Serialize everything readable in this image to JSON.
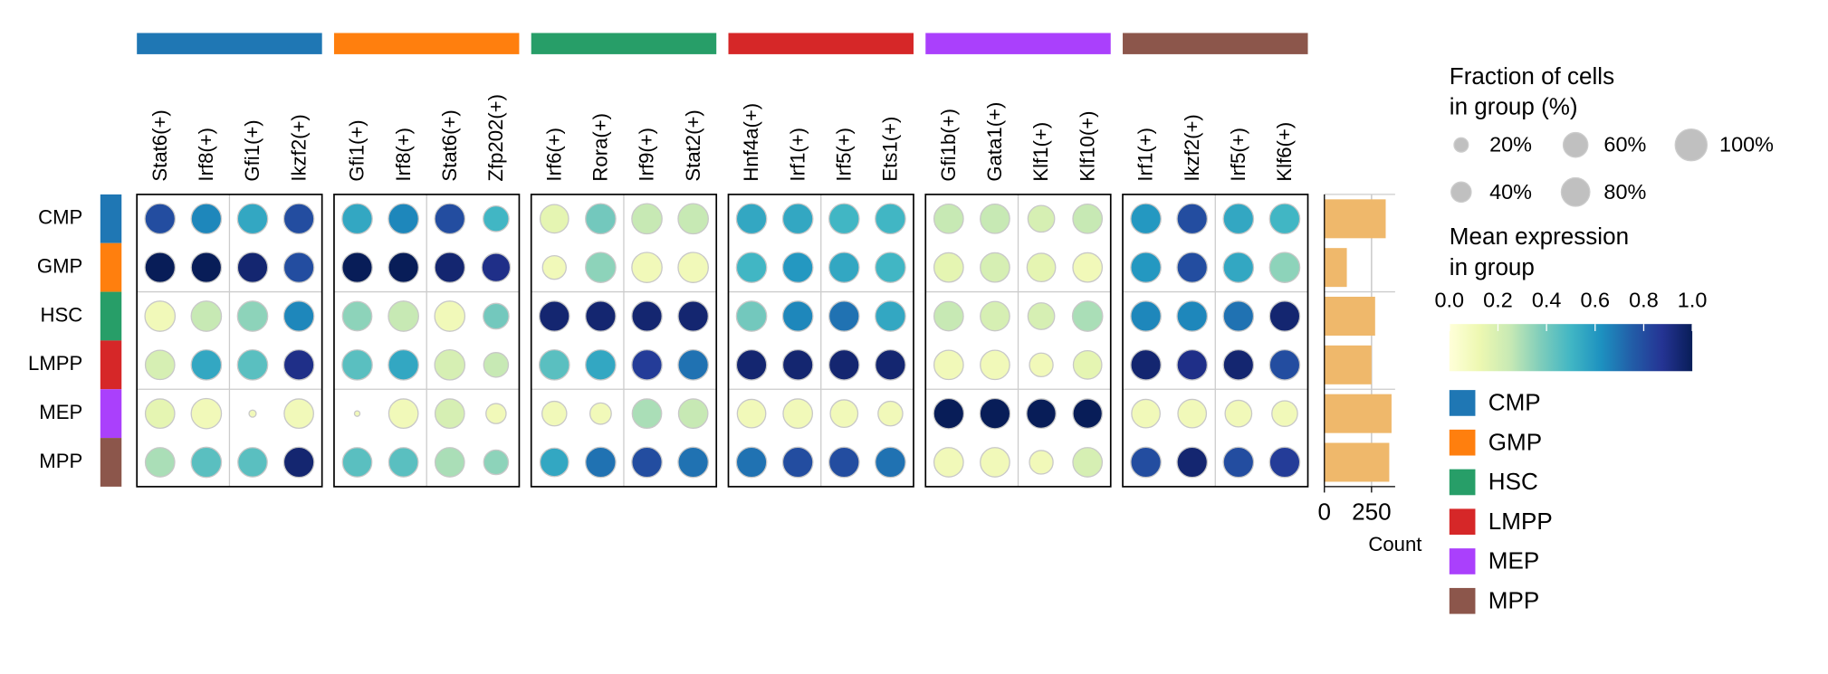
{
  "chart_data": {
    "type": "dotplot",
    "rows": [
      "CMP",
      "GMP",
      "HSC",
      "LMPP",
      "MEP",
      "MPP"
    ],
    "row_colors": [
      "#1f77b4",
      "#ff7f0e",
      "#279e68",
      "#d62728",
      "#aa40fc",
      "#8c564b"
    ],
    "column_groups": [
      {
        "color": "#1f77b4",
        "genes": [
          "Stat6(+)",
          "Irf8(+)",
          "Gfi1(+)",
          "Ikzf2(+)"
        ]
      },
      {
        "color": "#ff7f0e",
        "genes": [
          "Gfi1(+)",
          "Irf8(+)",
          "Stat6(+)",
          "Zfp202(+)"
        ]
      },
      {
        "color": "#279e68",
        "genes": [
          "Irf6(+)",
          "Rora(+)",
          "Irf9(+)",
          "Stat2(+)"
        ]
      },
      {
        "color": "#d62728",
        "genes": [
          "Hnf4a(+)",
          "Irf1(+)",
          "Irf5(+)",
          "Ets1(+)"
        ]
      },
      {
        "color": "#aa40fc",
        "genes": [
          "Gfi1b(+)",
          "Gata1(+)",
          "Klf1(+)",
          "Klf10(+)"
        ]
      },
      {
        "color": "#8c564b",
        "genes": [
          "Irf1(+)",
          "Ikzf2(+)",
          "Irf5(+)",
          "Klf6(+)"
        ]
      }
    ],
    "fraction": [
      [
        90,
        90,
        90,
        90,
        90,
        90,
        90,
        65,
        80,
        90,
        90,
        90,
        90,
        90,
        90,
        90,
        85,
        85,
        70,
        85,
        90,
        90,
        90,
        90
      ],
      [
        90,
        90,
        90,
        90,
        90,
        90,
        90,
        80,
        55,
        90,
        90,
        90,
        90,
        90,
        90,
        90,
        85,
        85,
        80,
        85,
        90,
        90,
        90,
        90
      ],
      [
        90,
        90,
        90,
        90,
        85,
        90,
        90,
        65,
        90,
        90,
        90,
        90,
        90,
        90,
        90,
        90,
        85,
        85,
        70,
        90,
        90,
        90,
        90,
        90
      ],
      [
        85,
        90,
        90,
        90,
        90,
        90,
        90,
        60,
        90,
        90,
        90,
        90,
        90,
        90,
        90,
        90,
        85,
        85,
        55,
        80,
        90,
        90,
        90,
        90
      ],
      [
        85,
        90,
        5,
        85,
        3,
        85,
        85,
        40,
        60,
        45,
        85,
        85,
        80,
        85,
        75,
        60,
        90,
        90,
        85,
        85,
        80,
        80,
        70,
        65
      ],
      [
        85,
        90,
        85,
        90,
        85,
        85,
        85,
        60,
        80,
        90,
        90,
        90,
        90,
        90,
        90,
        90,
        85,
        85,
        55,
        85,
        90,
        90,
        90,
        90
      ]
    ],
    "expression": [
      [
        0.8,
        0.65,
        0.55,
        0.8,
        0.55,
        0.65,
        0.8,
        0.5,
        0.15,
        0.4,
        0.25,
        0.25,
        0.55,
        0.55,
        0.5,
        0.5,
        0.25,
        0.25,
        0.2,
        0.25,
        0.6,
        0.8,
        0.55,
        0.5
      ],
      [
        1,
        1,
        0.95,
        0.8,
        1,
        1,
        0.95,
        0.9,
        0.1,
        0.35,
        0.1,
        0.1,
        0.5,
        0.6,
        0.55,
        0.5,
        0.15,
        0.2,
        0.15,
        0.1,
        0.6,
        0.8,
        0.55,
        0.35
      ],
      [
        0.1,
        0.25,
        0.35,
        0.65,
        0.35,
        0.25,
        0.1,
        0.4,
        0.95,
        0.95,
        0.95,
        0.95,
        0.4,
        0.65,
        0.7,
        0.55,
        0.25,
        0.2,
        0.2,
        0.3,
        0.65,
        0.65,
        0.7,
        0.95
      ],
      [
        0.2,
        0.55,
        0.45,
        0.9,
        0.45,
        0.55,
        0.2,
        0.25,
        0.45,
        0.55,
        0.85,
        0.7,
        0.95,
        0.95,
        0.95,
        0.95,
        0.1,
        0.1,
        0.1,
        0.15,
        0.95,
        0.9,
        0.95,
        0.8
      ],
      [
        0.15,
        0.1,
        0.1,
        0.1,
        0.1,
        0.1,
        0.2,
        0.1,
        0.1,
        0.1,
        0.3,
        0.25,
        0.1,
        0.1,
        0.1,
        0.1,
        1,
        1,
        1,
        1,
        0.1,
        0.1,
        0.1,
        0.1
      ],
      [
        0.3,
        0.45,
        0.45,
        0.95,
        0.45,
        0.45,
        0.3,
        0.35,
        0.55,
        0.7,
        0.8,
        0.7,
        0.7,
        0.8,
        0.8,
        0.7,
        0.1,
        0.1,
        0.1,
        0.2,
        0.8,
        0.95,
        0.8,
        0.85
      ]
    ],
    "counts": {
      "values": [
        325,
        119,
        269,
        250,
        356,
        344
      ],
      "color": "#efb86b",
      "xlim": [
        0,
        375
      ],
      "xticks": [
        0,
        250
      ],
      "xlabel": "Count"
    },
    "size_legend": {
      "title": [
        "Fraction of cells",
        "in group (%)"
      ],
      "size_lim": [
        0,
        100
      ],
      "ticks": [
        {
          "value": 20,
          "label": "20%"
        },
        {
          "value": 40,
          "label": "40%"
        },
        {
          "value": 60,
          "label": "60%"
        },
        {
          "value": 80,
          "label": "80%"
        },
        {
          "value": 100,
          "label": "100%"
        }
      ]
    },
    "color_legend": {
      "title": [
        "Mean expression",
        "in group"
      ],
      "colormap": "YlGnBu",
      "clim": [
        0,
        1
      ],
      "ticks": [
        {
          "value": 0,
          "label": "0.0"
        },
        0.2,
        0.4,
        0.6,
        0.8,
        {
          "value": 1,
          "label": "1.0"
        }
      ]
    }
  }
}
